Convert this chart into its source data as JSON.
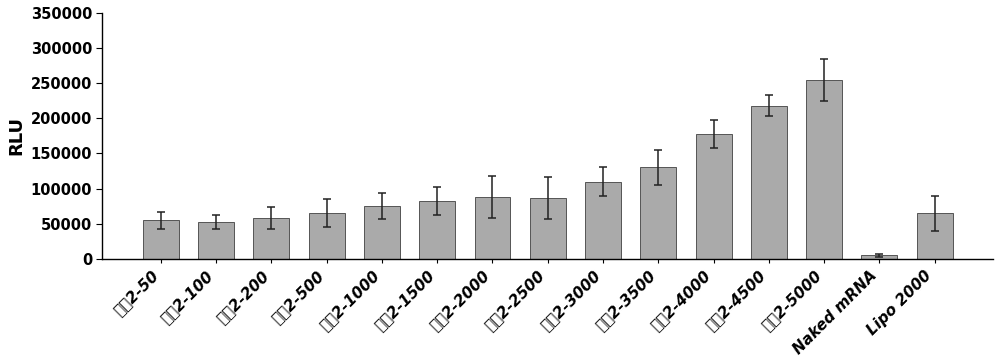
{
  "categories": [
    "处方2-50",
    "处方2-100",
    "处方2-200",
    "处方2-500",
    "处方2-1000",
    "处方2-1500",
    "处方2-2000",
    "处方2-2500",
    "处方2-3000",
    "处方2-3500",
    "处方2-4000",
    "处方2-4500",
    "处方2-5000",
    "Naked mRNA",
    "Lipo 2000"
  ],
  "values": [
    55000,
    52000,
    58000,
    65000,
    75000,
    82000,
    88000,
    87000,
    110000,
    130000,
    178000,
    218000,
    255000,
    5000,
    65000
  ],
  "errors": [
    12000,
    10000,
    15000,
    20000,
    18000,
    20000,
    30000,
    30000,
    20000,
    25000,
    20000,
    15000,
    30000,
    2000,
    25000
  ],
  "bar_color": "#aaaaaa",
  "bar_edge_color": "#555555",
  "ylabel": "RLU",
  "ylim": [
    0,
    350000
  ],
  "yticks": [
    0,
    50000,
    100000,
    150000,
    200000,
    250000,
    300000,
    350000
  ],
  "background_color": "#ffffff",
  "ylabel_fontsize": 13,
  "tick_fontsize": 10.5,
  "xtick_fontsize": 11,
  "bar_width": 0.65
}
